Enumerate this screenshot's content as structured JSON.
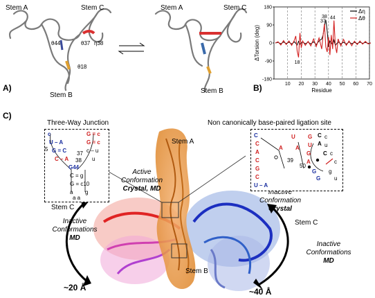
{
  "panel_a": {
    "letter": "A)",
    "left": {
      "stem_a": "Stem A",
      "stem_c": "Stem C",
      "stem_b": "Stem B",
      "theta44": "θ44",
      "theta37": "θ37",
      "eta38": "η38",
      "theta18": "θ18"
    },
    "right": {
      "stem_a": "Stem A",
      "stem_c": "Stem C",
      "stem_b": "Stem B"
    }
  },
  "panel_b": {
    "letter": "B)",
    "chart_data": {
      "type": "line",
      "xlabel": "Residue",
      "ylabel": "ΔTorsion (deg)",
      "xlim": [
        0,
        70
      ],
      "ylim": [
        -180,
        180
      ],
      "xticks": [
        10,
        20,
        30,
        40,
        50,
        60,
        70
      ],
      "yticks": [
        -180,
        -90,
        0,
        90,
        180
      ],
      "legend_position": "top-right",
      "annotations": [
        {
          "label": "37",
          "x": 37,
          "y": 95
        },
        {
          "label": "38",
          "x": 38,
          "y": 118
        },
        {
          "label": "44",
          "x": 44,
          "y": 112
        },
        {
          "label": "18",
          "x": 18,
          "y": -72
        }
      ],
      "series": [
        {
          "name": "Δη",
          "color": "#000000",
          "x": [
            1,
            3,
            5,
            7,
            9,
            11,
            13,
            15,
            17,
            18,
            19,
            21,
            23,
            25,
            27,
            29,
            31,
            33,
            35,
            36,
            37,
            38,
            39,
            40,
            41,
            43,
            44,
            45,
            47,
            49,
            51,
            53,
            55,
            57,
            59,
            61,
            63,
            65,
            67,
            69,
            71
          ],
          "y": [
            0,
            3,
            -4,
            5,
            -3,
            4,
            -5,
            6,
            -10,
            8,
            -6,
            5,
            -4,
            4,
            -5,
            6,
            -8,
            10,
            20,
            40,
            85,
            115,
            60,
            -20,
            10,
            -10,
            15,
            -12,
            6,
            -5,
            4,
            -6,
            5,
            -4,
            3,
            -3,
            4,
            -2,
            3,
            -2,
            0
          ]
        },
        {
          "name": "Δθ",
          "color": "#d21f1f",
          "x": [
            1,
            3,
            5,
            7,
            9,
            11,
            13,
            15,
            16,
            17,
            18,
            19,
            20,
            21,
            23,
            25,
            27,
            29,
            31,
            33,
            35,
            36,
            37,
            38,
            39,
            40,
            41,
            42,
            43,
            44,
            45,
            46,
            47,
            49,
            51,
            53,
            55,
            57,
            59,
            61,
            63,
            65,
            67,
            69,
            71
          ],
          "y": [
            0,
            6,
            -10,
            12,
            -8,
            10,
            -12,
            15,
            35,
            -40,
            -72,
            50,
            -25,
            10,
            -12,
            8,
            -15,
            20,
            -18,
            25,
            -30,
            40,
            95,
            -20,
            -45,
            30,
            -60,
            40,
            -30,
            112,
            -15,
            -50,
            20,
            -15,
            18,
            -12,
            10,
            -14,
            9,
            -8,
            10,
            -6,
            8,
            -5,
            0
          ]
        }
      ]
    }
  },
  "panel_c": {
    "letter": "C)",
    "stem_a": "Stem A",
    "stem_b": "Stem B",
    "stem_c_left": "Stem C",
    "stem_c_right": "Stem C",
    "active_conf": {
      "line1": "Active",
      "line2": "Conformation",
      "line3": "Crystal, MD"
    },
    "inactive_left": {
      "line1": "Inactive",
      "line2": "Conformations",
      "line3": "MD"
    },
    "inactive_right_top": {
      "line1": "Inactive",
      "line2": "Conformation",
      "line3": "Crystal"
    },
    "inactive_right_bottom": {
      "line1": "Inactive",
      "line2": "Conformations",
      "line3": "MD"
    },
    "dist_left": "~20 Å",
    "dist_right": "~40 Å",
    "junction_title": "Three-Way Junction",
    "ligation_title": "Non canonically base-paired ligation site",
    "junction": {
      "u_a": "U – A",
      "g_c": "G = C",
      "c_a": "C – A",
      "g44": "G44",
      "g_c_r1": "G = c",
      "g_c_r2": "G = c",
      "c_u": "c – u",
      "u": "u",
      "c_g1": "C = g",
      "g_c10": "G = c10",
      "g_ll": "g",
      "a_a": "a    a",
      "num_s": "5",
      "num_37": "37",
      "num_38": "38",
      "a": "a",
      "c": "c"
    },
    "ligation": {
      "c_top": "C",
      "c2": "C",
      "a1": "A",
      "c3": "C",
      "g1": "G",
      "c4": "C",
      "u_a": "U – A",
      "u": "U",
      "a2": "A",
      "a3": "A",
      "g2": "G",
      "u2": "U",
      "num39": "39",
      "num50": "50",
      "g3": "G",
      "a4": "A",
      "g4": "G",
      "c5": "C",
      "a5": "A",
      "c6": "c",
      "u3": "u",
      "g5": "G",
      "c7": "C",
      "c8": "c",
      "g6": "g",
      "c9": "c",
      "u4": "u"
    }
  }
}
